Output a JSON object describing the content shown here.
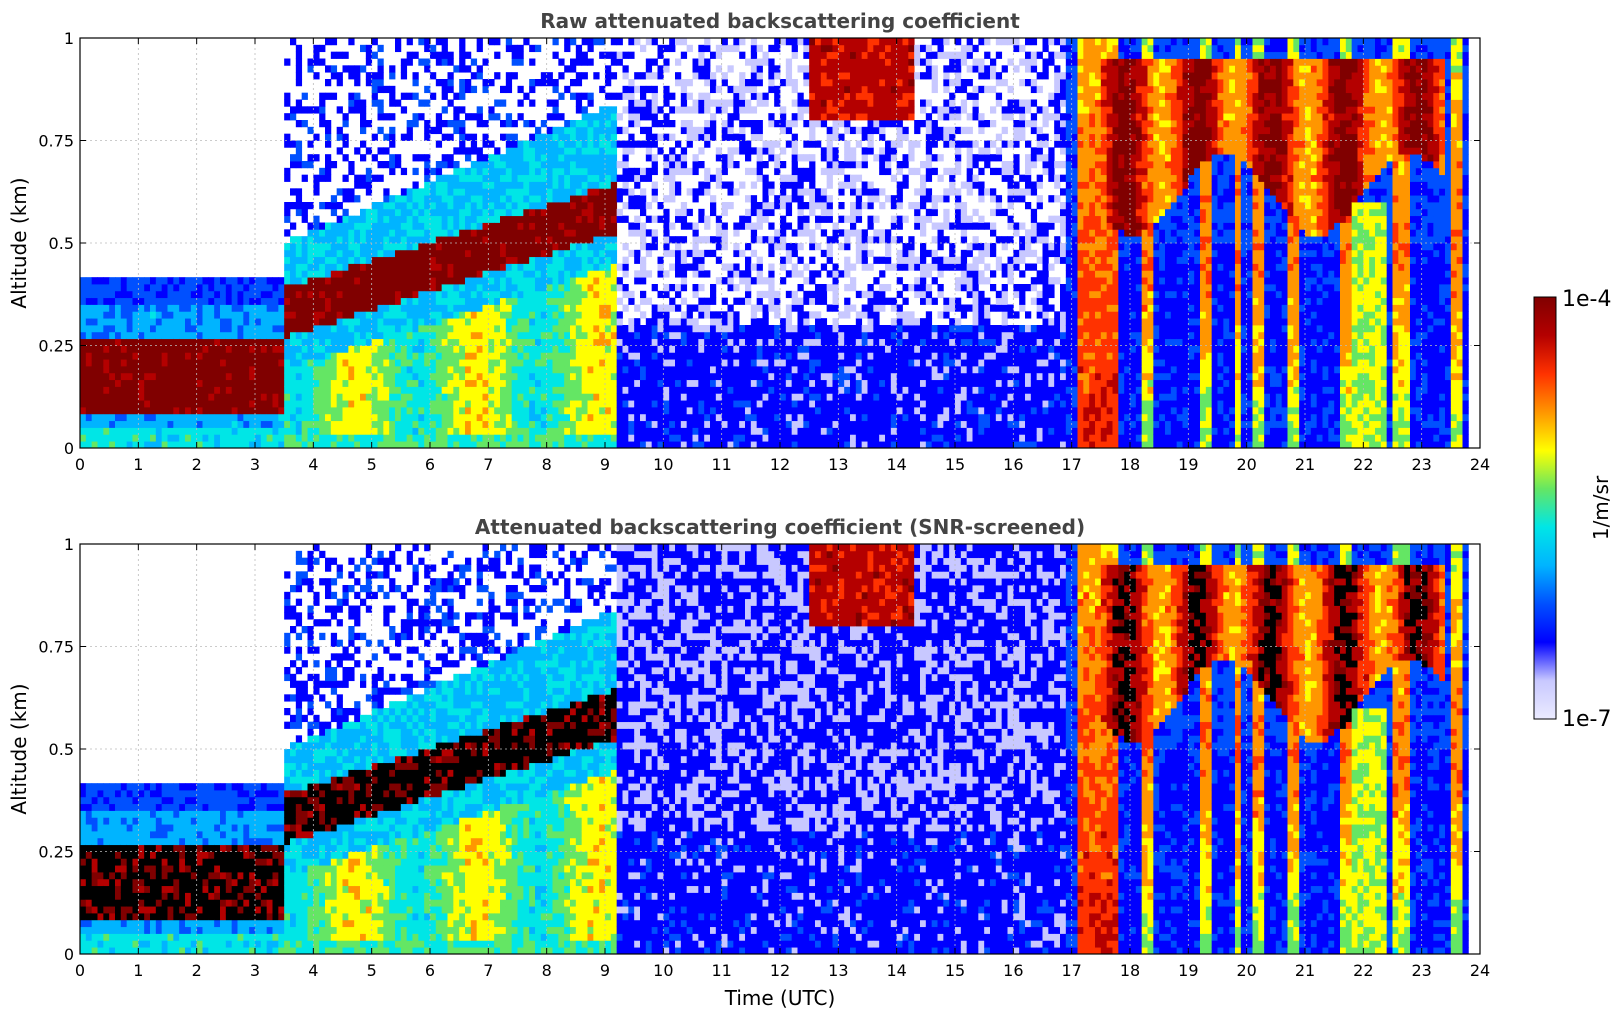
{
  "chart_data": [
    {
      "type": "heatmap",
      "title": "Raw attenuated backscattering coefficient",
      "xlabel": "",
      "ylabel": "Altitude (km)",
      "xlim": [
        0,
        24
      ],
      "ylim": [
        0,
        1
      ],
      "x_ticks": [
        "0",
        "1",
        "2",
        "3",
        "4",
        "5",
        "6",
        "7",
        "8",
        "9",
        "10",
        "11",
        "12",
        "13",
        "14",
        "15",
        "16",
        "17",
        "18",
        "19",
        "20",
        "21",
        "22",
        "23",
        "24"
      ],
      "y_ticks": [
        "0",
        "0.25",
        "0.5",
        "0.75",
        "1"
      ],
      "grid": true,
      "colorscale": "jet (log)",
      "features": [
        {
          "name": "near-surface layer",
          "x_range": [
            0,
            3.5
          ],
          "y_range": [
            0.08,
            0.3
          ],
          "level": "1e-4"
        },
        {
          "name": "rising aerosol layer",
          "x_range": [
            3.5,
            9.2
          ],
          "y_range": [
            0.25,
            0.7
          ],
          "level": "1e-4"
        },
        {
          "name": "cloud",
          "x_range": [
            17,
            23.5
          ],
          "y_range": [
            0.6,
            1
          ],
          "level": "1e-4"
        }
      ]
    },
    {
      "type": "heatmap",
      "title": "Attenuated backscattering coefficient (SNR-screened)",
      "xlabel": "Time (UTC)",
      "ylabel": "Altitude (km)",
      "xlim": [
        0,
        24
      ],
      "ylim": [
        0,
        1
      ],
      "x_ticks": [
        "0",
        "1",
        "2",
        "3",
        "4",
        "5",
        "6",
        "7",
        "8",
        "9",
        "10",
        "11",
        "12",
        "13",
        "14",
        "15",
        "16",
        "17",
        "18",
        "19",
        "20",
        "21",
        "22",
        "23",
        "24"
      ],
      "y_ticks": [
        "0",
        "0.25",
        "0.5",
        "0.75",
        "1"
      ],
      "grid": true,
      "colorscale": "jet (log), saturated values black",
      "features": [
        {
          "name": "near-surface layer",
          "x_range": [
            0,
            3.5
          ],
          "y_range": [
            0.08,
            0.3
          ],
          "level": "saturated"
        },
        {
          "name": "rising aerosol layer",
          "x_range": [
            3.5,
            9.2
          ],
          "y_range": [
            0.25,
            0.7
          ],
          "level": "saturated"
        },
        {
          "name": "cloud",
          "x_range": [
            17,
            23.5
          ],
          "y_range": [
            0.6,
            1
          ],
          "level": "saturated"
        }
      ]
    }
  ],
  "colorbar": {
    "label": "1/m/sr",
    "max_label": "1e-4",
    "min_label": "1e-7",
    "colors": [
      "#ebebff",
      "#c8c8ff",
      "#0000ff",
      "#0050ff",
      "#00b4ff",
      "#00e6e6",
      "#64e664",
      "#ffff00",
      "#ff9600",
      "#ff3200",
      "#b40000",
      "#800000"
    ]
  }
}
